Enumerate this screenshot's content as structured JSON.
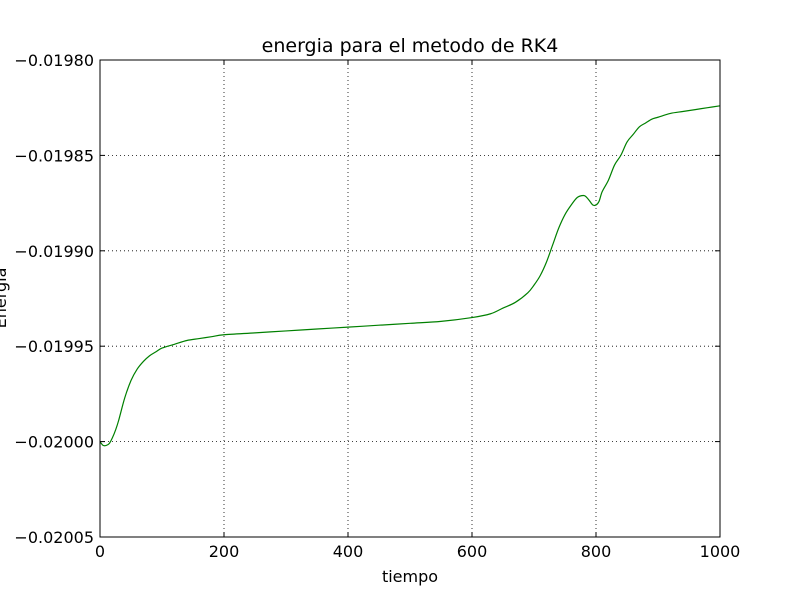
{
  "chart_data": {
    "type": "line",
    "title": "energia para el metodo de RK4",
    "xlabel": "tiempo",
    "ylabel": "Energia",
    "xlim": [
      0,
      1000
    ],
    "ylim": [
      -0.02005,
      -0.0198
    ],
    "xticks": [
      0,
      200,
      400,
      600,
      800,
      1000
    ],
    "xtick_labels": [
      "0",
      "200",
      "400",
      "600",
      "800",
      "1000"
    ],
    "yticks": [
      -0.0198,
      -0.01985,
      -0.0199,
      -0.01995,
      -0.02,
      -0.02005
    ],
    "ytick_labels": [
      "−0.01980",
      "−0.01985",
      "−0.01990",
      "−0.01995",
      "−0.02000",
      "−0.02005"
    ],
    "grid": true,
    "series": [
      {
        "color": "#008000",
        "x": [
          0,
          5,
          10,
          15,
          20,
          25,
          30,
          40,
          50,
          60,
          70,
          80,
          90,
          100,
          120,
          140,
          160,
          180,
          200,
          250,
          300,
          350,
          400,
          450,
          500,
          550,
          600,
          630,
          650,
          670,
          690,
          700,
          710,
          720,
          730,
          740,
          750,
          760,
          770,
          780,
          785,
          790,
          795,
          800,
          805,
          810,
          820,
          830,
          840,
          850,
          860,
          870,
          880,
          890,
          900,
          920,
          940,
          960,
          980,
          1000
        ],
        "y": [
          -0.02,
          -0.020002,
          -0.020002,
          -0.020001,
          -0.019998,
          -0.019994,
          -0.019989,
          -0.019977,
          -0.019968,
          -0.019962,
          -0.019958,
          -0.019955,
          -0.019953,
          -0.019951,
          -0.019949,
          -0.019947,
          -0.019946,
          -0.019945,
          -0.019944,
          -0.019943,
          -0.019942,
          -0.019941,
          -0.01994,
          -0.019939,
          -0.019938,
          -0.019937,
          -0.019935,
          -0.019933,
          -0.01993,
          -0.019927,
          -0.019922,
          -0.019918,
          -0.019913,
          -0.019906,
          -0.019897,
          -0.019888,
          -0.019881,
          -0.019876,
          -0.019872,
          -0.019871,
          -0.019872,
          -0.019874,
          -0.019876,
          -0.019876,
          -0.019874,
          -0.019869,
          -0.019863,
          -0.019855,
          -0.01985,
          -0.019843,
          -0.019839,
          -0.019835,
          -0.019833,
          -0.019831,
          -0.01983,
          -0.019828,
          -0.019827,
          -0.019826,
          -0.019825,
          -0.019824
        ]
      }
    ]
  }
}
